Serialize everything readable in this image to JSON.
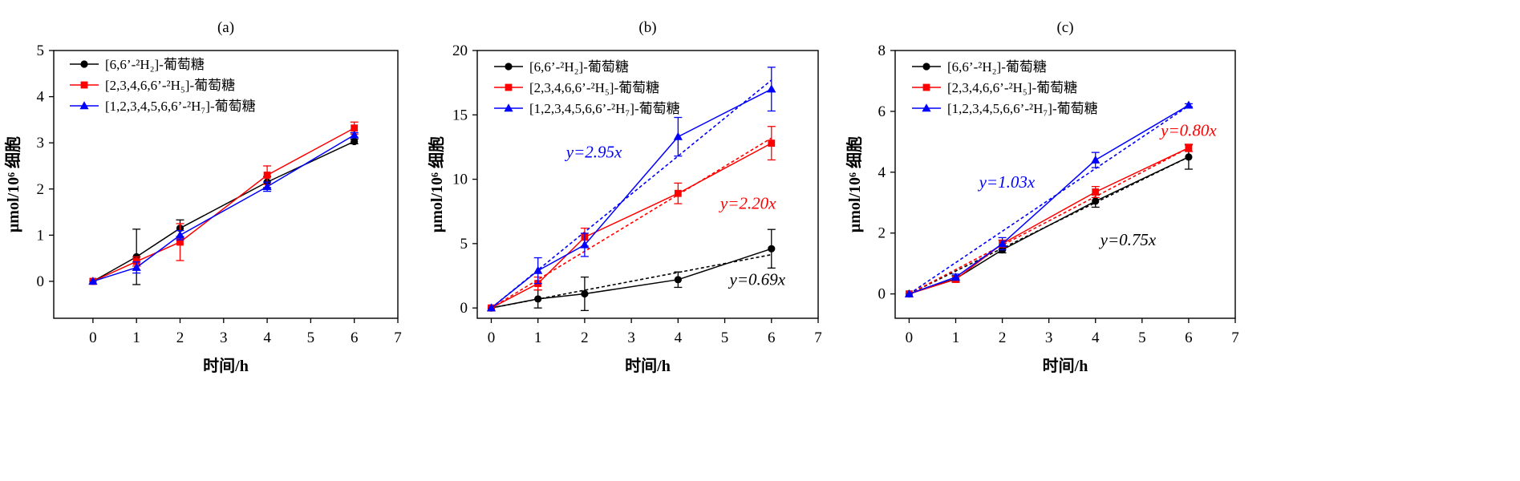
{
  "chart_data": [
    {
      "type": "line",
      "title": "(a)",
      "xlabel": "时间/h",
      "ylabel": "μmol/10⁶ 细胞",
      "xlim": [
        -0.9,
        7
      ],
      "ylim": [
        -0.8,
        5
      ],
      "xticks": [
        0,
        1,
        2,
        3,
        4,
        5,
        6,
        7
      ],
      "yticks": [
        0,
        1,
        2,
        3,
        4,
        5
      ],
      "legend_position": "top-left",
      "series": [
        {
          "name": "[6,6’-²H₂]-葡萄糖",
          "color": "#000000",
          "marker": "circle",
          "x": [
            0,
            1,
            2,
            4,
            6
          ],
          "y": [
            0,
            0.53,
            1.15,
            2.15,
            3.03
          ],
          "err": [
            0,
            0.6,
            0.18,
            0.12,
            0.05
          ]
        },
        {
          "name": "[2,3,4,6,6’-²H₅]-葡萄糖",
          "color": "#ff0000",
          "marker": "square",
          "x": [
            0,
            1,
            2,
            4,
            6
          ],
          "y": [
            0,
            0.43,
            0.85,
            2.3,
            3.32
          ],
          "err": [
            0,
            0.1,
            0.4,
            0.2,
            0.13
          ]
        },
        {
          "name": "[1,2,3,4,5,6,6’-²H₇]-葡萄糖",
          "color": "#0000ff",
          "marker": "triangle",
          "x": [
            0,
            1,
            2,
            4,
            6
          ],
          "y": [
            0,
            0.3,
            1.0,
            2.05,
            3.17
          ],
          "err": [
            0,
            0.12,
            0.1,
            0.1,
            0.05
          ]
        }
      ],
      "fits": [],
      "annotations": []
    },
    {
      "type": "line",
      "title": "(b)",
      "xlabel": "时间/h",
      "ylabel": "μmol/10⁶ 细胞",
      "xlim": [
        -0.3,
        7
      ],
      "ylim": [
        -0.8,
        20
      ],
      "xticks": [
        0,
        1,
        2,
        3,
        4,
        5,
        6,
        7
      ],
      "yticks": [
        0,
        5,
        10,
        15,
        20
      ],
      "legend_position": "top-left",
      "series": [
        {
          "name": "[6,6’-²H₂]-葡萄糖",
          "color": "#000000",
          "marker": "circle",
          "x": [
            0,
            1,
            2,
            4,
            6
          ],
          "y": [
            0,
            0.7,
            1.1,
            2.2,
            4.6
          ],
          "err": [
            0,
            0.7,
            1.3,
            0.6,
            1.5
          ]
        },
        {
          "name": "[2,3,4,6,6’-²H₅]-葡萄糖",
          "color": "#ff0000",
          "marker": "square",
          "x": [
            0,
            1,
            2,
            4,
            6
          ],
          "y": [
            0,
            1.9,
            5.5,
            8.9,
            12.8
          ],
          "err": [
            0,
            0.5,
            0.7,
            0.8,
            1.3
          ]
        },
        {
          "name": "[1,2,3,4,5,6,6’-²H₇]-葡萄糖",
          "color": "#0000ff",
          "marker": "triangle",
          "x": [
            0,
            1,
            2,
            4,
            6
          ],
          "y": [
            0,
            2.9,
            4.9,
            13.3,
            17.0
          ],
          "err": [
            0,
            1.0,
            0.9,
            1.5,
            1.7
          ]
        }
      ],
      "fits": [
        {
          "slope": 0.69,
          "color": "#000000"
        },
        {
          "slope": 2.2,
          "color": "#ff0000"
        },
        {
          "slope": 2.95,
          "color": "#0000ff"
        }
      ],
      "annotations": [
        {
          "text": "y=0.69x",
          "color": "#000000",
          "x": 5.7,
          "y": 1.8
        },
        {
          "text": "y=2.20x",
          "color": "#ff0000",
          "x": 5.5,
          "y": 7.7
        },
        {
          "text": "y=2.95x",
          "color": "#0000ff",
          "x": 2.2,
          "y": 11.7
        }
      ]
    },
    {
      "type": "line",
      "title": "(c)",
      "xlabel": "时间/h",
      "ylabel": "μmol/10⁶ 细胞",
      "xlim": [
        -0.3,
        7
      ],
      "ylim": [
        -0.8,
        8
      ],
      "xticks": [
        0,
        1,
        2,
        3,
        4,
        5,
        6,
        7
      ],
      "yticks": [
        0,
        2,
        4,
        6,
        8
      ],
      "legend_position": "top-left",
      "series": [
        {
          "name": "[6,6’-²H₂]-葡萄糖",
          "color": "#000000",
          "marker": "circle",
          "x": [
            0,
            1,
            2,
            4,
            6
          ],
          "y": [
            0,
            0.5,
            1.45,
            3.05,
            4.5
          ],
          "err": [
            0,
            0.1,
            0.1,
            0.2,
            0.4
          ]
        },
        {
          "name": "[2,3,4,6,6’-²H₅]-葡萄糖",
          "color": "#ff0000",
          "marker": "square",
          "x": [
            0,
            1,
            2,
            4,
            6
          ],
          "y": [
            0,
            0.48,
            1.65,
            3.35,
            4.8
          ],
          "err": [
            0,
            0.1,
            0.12,
            0.18,
            0.12
          ]
        },
        {
          "name": "[1,2,3,4,5,6,6’-²H₇]-葡萄糖",
          "color": "#0000ff",
          "marker": "triangle",
          "x": [
            0,
            1,
            2,
            4,
            6
          ],
          "y": [
            0,
            0.55,
            1.65,
            4.4,
            6.2
          ],
          "err": [
            0,
            0.1,
            0.2,
            0.25,
            0.05
          ]
        }
      ],
      "fits": [
        {
          "slope": 0.75,
          "color": "#000000"
        },
        {
          "slope": 0.8,
          "color": "#ff0000"
        },
        {
          "slope": 1.03,
          "color": "#0000ff"
        }
      ],
      "annotations": [
        {
          "text": "y=0.75x",
          "color": "#000000",
          "x": 4.7,
          "y": 1.6
        },
        {
          "text": "y=0.80x",
          "color": "#ff0000",
          "x": 6.0,
          "y": 5.2
        },
        {
          "text": "y=1.03x",
          "color": "#0000ff",
          "x": 2.1,
          "y": 3.5
        }
      ]
    }
  ]
}
